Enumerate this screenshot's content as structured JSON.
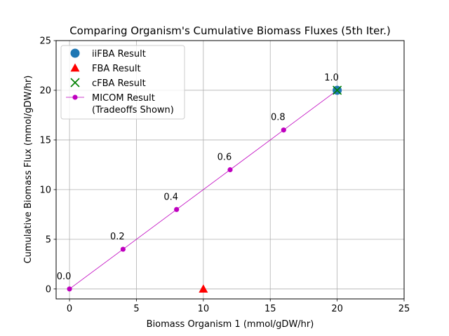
{
  "chart_data": {
    "type": "scatter",
    "title": "Comparing Organism's Cumulative Biomass Fluxes (5th Iter.)",
    "xlabel": "Biomass Organism 1 (mmol/gDW/hr)",
    "ylabel": "Cumulative Biomass Flux (mmol/gDW/hr)",
    "xlim": [
      -1,
      25
    ],
    "ylim": [
      -1,
      25
    ],
    "xticks": [
      0,
      5,
      10,
      15,
      20,
      25
    ],
    "yticks": [
      0,
      5,
      10,
      15,
      20,
      25
    ],
    "grid": true,
    "legend_position": "upper-left",
    "series": [
      {
        "name": "iiFBA Result",
        "marker": "circle",
        "color": "#1f77b4",
        "points": [
          [
            20,
            20
          ]
        ]
      },
      {
        "name": "FBA Result",
        "marker": "triangle",
        "color": "#ff0000",
        "points": [
          [
            10,
            0
          ]
        ]
      },
      {
        "name": "cFBA Result",
        "marker": "x",
        "color": "#008000",
        "points": [
          [
            20,
            20
          ]
        ]
      },
      {
        "name": "MICOM Result\n(Tradeoffs Shown)",
        "marker": "line-dot",
        "color": "#bf00bf",
        "points": [
          [
            0,
            0
          ],
          [
            4,
            4
          ],
          [
            8,
            8
          ],
          [
            12,
            12
          ],
          [
            16,
            16
          ],
          [
            20,
            20
          ]
        ],
        "point_labels": [
          "0.0",
          "0.2",
          "0.4",
          "0.6",
          "0.8",
          "1.0"
        ]
      }
    ]
  }
}
